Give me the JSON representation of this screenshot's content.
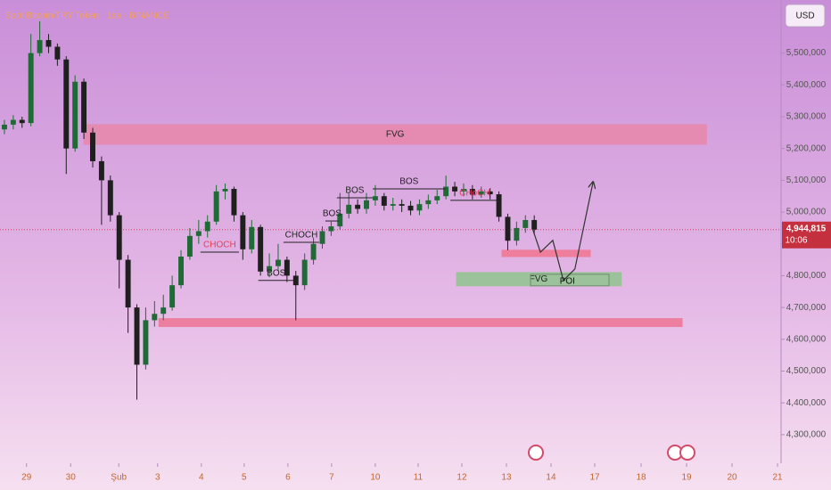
{
  "chart_data": {
    "type": "candlestick",
    "title": "Spot Bitcoin/TRY Token · 1sa · BINANCE",
    "currency_button": "USD",
    "up_color": "#1e6b35",
    "down_color": "#1f1f1f",
    "x": [
      -0.5,
      -0.3,
      -0.1,
      0.1,
      0.3,
      0.5,
      0.7,
      0.9,
      1.1,
      1.3,
      1.5,
      1.7,
      1.9,
      2.1,
      2.3,
      2.5,
      2.7,
      2.9,
      3.1,
      3.3,
      3.5,
      3.7,
      3.9,
      4.1,
      4.3,
      4.5,
      4.7,
      4.9,
      5.1,
      5.3,
      5.5,
      5.7,
      5.9,
      6.1,
      6.3,
      6.5,
      6.7,
      6.9,
      7.1,
      7.3,
      7.5,
      7.7,
      7.9,
      8.1,
      8.3,
      8.5,
      8.7,
      8.9,
      9.1,
      9.3,
      9.5,
      9.7,
      9.9,
      10.1,
      10.3,
      10.5,
      10.7,
      10.9,
      11.1,
      11.3,
      11.5
    ],
    "open": [
      5260000,
      5275000,
      5290000,
      5280000,
      5500000,
      5541000,
      5520000,
      5480000,
      5200000,
      5410000,
      5250000,
      5160000,
      5100000,
      4990000,
      4850000,
      4700000,
      4520000,
      4660000,
      4680000,
      4700000,
      4770000,
      4860000,
      4925000,
      4940000,
      4970000,
      5065000,
      5073000,
      4990000,
      4883000,
      4953000,
      4813000,
      4830000,
      4850000,
      4800000,
      4770000,
      4850000,
      4900000,
      4940000,
      4955000,
      4995000,
      5023000,
      5010000,
      5037000,
      5050000,
      5020000,
      5025000,
      5020000,
      5005000,
      5025000,
      5037000,
      5050000,
      5080000,
      5065000,
      5073000,
      5055000,
      5065000,
      5056000,
      4985000,
      4910000,
      4950000,
      4975000
    ],
    "high": [
      5290000,
      5305000,
      5300000,
      5560000,
      5600000,
      5560000,
      5530000,
      5490000,
      5430000,
      5420000,
      5265000,
      5175000,
      5115000,
      5000000,
      4865000,
      4710000,
      4700000,
      4720000,
      4740000,
      4800000,
      4880000,
      4950000,
      4975000,
      4990000,
      5085000,
      5090000,
      5080000,
      5000000,
      4975000,
      4960000,
      4870000,
      4900000,
      4860000,
      4815000,
      4870000,
      4920000,
      4955000,
      4970000,
      5060000,
      5060000,
      5040000,
      5060000,
      5085000,
      5060000,
      5045000,
      5040000,
      5035000,
      5040000,
      5055000,
      5070000,
      5115000,
      5095000,
      5090000,
      5085000,
      5080000,
      5075000,
      5065000,
      4995000,
      4970000,
      4990000,
      4990000
    ],
    "low": [
      5245000,
      5260000,
      5265000,
      5270000,
      5490000,
      5500000,
      5460000,
      5120000,
      5190000,
      5230000,
      5140000,
      4960000,
      4970000,
      4760000,
      4620000,
      4410000,
      4505000,
      4640000,
      4660000,
      4690000,
      4760000,
      4850000,
      4900000,
      4920000,
      4960000,
      5040000,
      4970000,
      4850000,
      4870000,
      4800000,
      4795000,
      4815000,
      4780000,
      4660000,
      4755000,
      4835000,
      4885000,
      4925000,
      4945000,
      4980000,
      4995000,
      4995000,
      5020000,
      5005000,
      5005000,
      5000000,
      4990000,
      4990000,
      5010000,
      5025000,
      5040000,
      5050000,
      5050000,
      5040000,
      5045000,
      5040000,
      4970000,
      4880000,
      4895000,
      4935000,
      4930000
    ],
    "close": [
      5275000,
      5290000,
      5280000,
      5500000,
      5541000,
      5520000,
      5480000,
      5200000,
      5410000,
      5250000,
      5160000,
      5100000,
      4990000,
      4850000,
      4700000,
      4520000,
      4660000,
      4680000,
      4700000,
      4770000,
      4860000,
      4925000,
      4940000,
      4970000,
      5065000,
      5073000,
      4990000,
      4883000,
      4953000,
      4813000,
      4830000,
      4850000,
      4800000,
      4770000,
      4850000,
      4900000,
      4940000,
      4955000,
      4995000,
      5023000,
      5010000,
      5037000,
      5050000,
      5020000,
      5025000,
      5020000,
      5005000,
      5025000,
      5037000,
      5050000,
      5080000,
      5065000,
      5073000,
      5055000,
      5065000,
      5056000,
      4985000,
      4910000,
      4950000,
      4975000,
      4944815
    ],
    "xlim": [
      -0.6,
      17.07
    ],
    "ylim": [
      4210000,
      5667000
    ],
    "xticks": [
      {
        "value": 0,
        "label": "29"
      },
      {
        "value": 1,
        "label": "30"
      },
      {
        "value": 2.09,
        "label": "Şub"
      },
      {
        "value": 2.97,
        "label": "3"
      },
      {
        "value": 3.96,
        "label": "4"
      },
      {
        "value": 4.93,
        "label": "5"
      },
      {
        "value": 5.92,
        "label": "6"
      },
      {
        "value": 6.91,
        "label": "7"
      },
      {
        "value": 7.9,
        "label": "10"
      },
      {
        "value": 8.87,
        "label": "11"
      },
      {
        "value": 9.86,
        "label": "12"
      },
      {
        "value": 10.87,
        "label": "13"
      },
      {
        "value": 11.88,
        "label": "14"
      },
      {
        "value": 12.87,
        "label": "17"
      },
      {
        "value": 13.92,
        "label": "18"
      },
      {
        "value": 14.95,
        "label": "19"
      },
      {
        "value": 15.98,
        "label": "20"
      },
      {
        "value": 17.01,
        "label": "21"
      }
    ],
    "yticks": [
      {
        "value": 4300000,
        "label": "4,300,000"
      },
      {
        "value": 4400000,
        "label": "4,400,000"
      },
      {
        "value": 4500000,
        "label": "4,500,000"
      },
      {
        "value": 4600000,
        "label": "4,600,000"
      },
      {
        "value": 4700000,
        "label": "4,700,000"
      },
      {
        "value": 4800000,
        "label": "4,800,000"
      },
      {
        "value": 4900000,
        "label": "4,900,000"
      },
      {
        "value": 5000000,
        "label": "5,000,000"
      },
      {
        "value": 5100000,
        "label": "5,100,000"
      },
      {
        "value": 5200000,
        "label": "5,200,000"
      },
      {
        "value": 5300000,
        "label": "5,300,000"
      },
      {
        "value": 5400000,
        "label": "5,400,000"
      },
      {
        "value": 5500000,
        "label": "5,500,000"
      }
    ],
    "zones": [
      {
        "label": "FVG",
        "x": [
          1.3,
          15.4
        ],
        "y": [
          5213000,
          5275000
        ],
        "color": "#e58ab0"
      },
      {
        "x": [
          3.0,
          14.85
        ],
        "y": [
          4640000,
          4665000
        ],
        "color": "#ec7fa0"
      },
      {
        "x": [
          10.77,
          12.77
        ],
        "y": [
          4860000,
          4880000
        ],
        "color": "#ef7d9c"
      },
      {
        "label": "FVG",
        "x": [
          9.74,
          13.47
        ],
        "y": [
          4768000,
          4810000
        ],
        "color": "#9cc29b"
      }
    ],
    "levels": [
      {
        "label": "CHOCH",
        "x": [
          3.94,
          4.81
        ],
        "y": 4874000,
        "color": "#e0405a"
      },
      {
        "label": "BOS",
        "x": [
          5.25,
          6.06
        ],
        "y": 4785000,
        "color": "#222222"
      },
      {
        "label": "CHOCH",
        "x": [
          5.82,
          6.63
        ],
        "y": 4905000,
        "color": "#222222"
      },
      {
        "label": "BOS",
        "x": [
          6.77,
          7.07
        ],
        "y": 4972000,
        "color": "#222222"
      },
      {
        "label": "BOS",
        "x": [
          7.03,
          7.84
        ],
        "y": 5045000,
        "color": "#222222"
      },
      {
        "label": "BOS",
        "x": [
          7.84,
          9.49
        ],
        "y": 5073000,
        "color": "#222222"
      },
      {
        "label": "CHoCH",
        "x": [
          9.6,
          10.7
        ],
        "y": 5037000,
        "color": "#e0405a"
      }
    ],
    "poi": {
      "label": "POI",
      "x": 12.25,
      "y": 4785000
    },
    "projection": {
      "x": [
        11.47,
        11.64,
        11.92,
        12.16,
        12.42,
        12.83
      ],
      "y": [
        4944000,
        4874000,
        4911000,
        4785000,
        4821000,
        5093000
      ]
    },
    "last_price": {
      "value": 4944815,
      "label": "4,944,815"
    },
    "countdown": "10:06"
  }
}
